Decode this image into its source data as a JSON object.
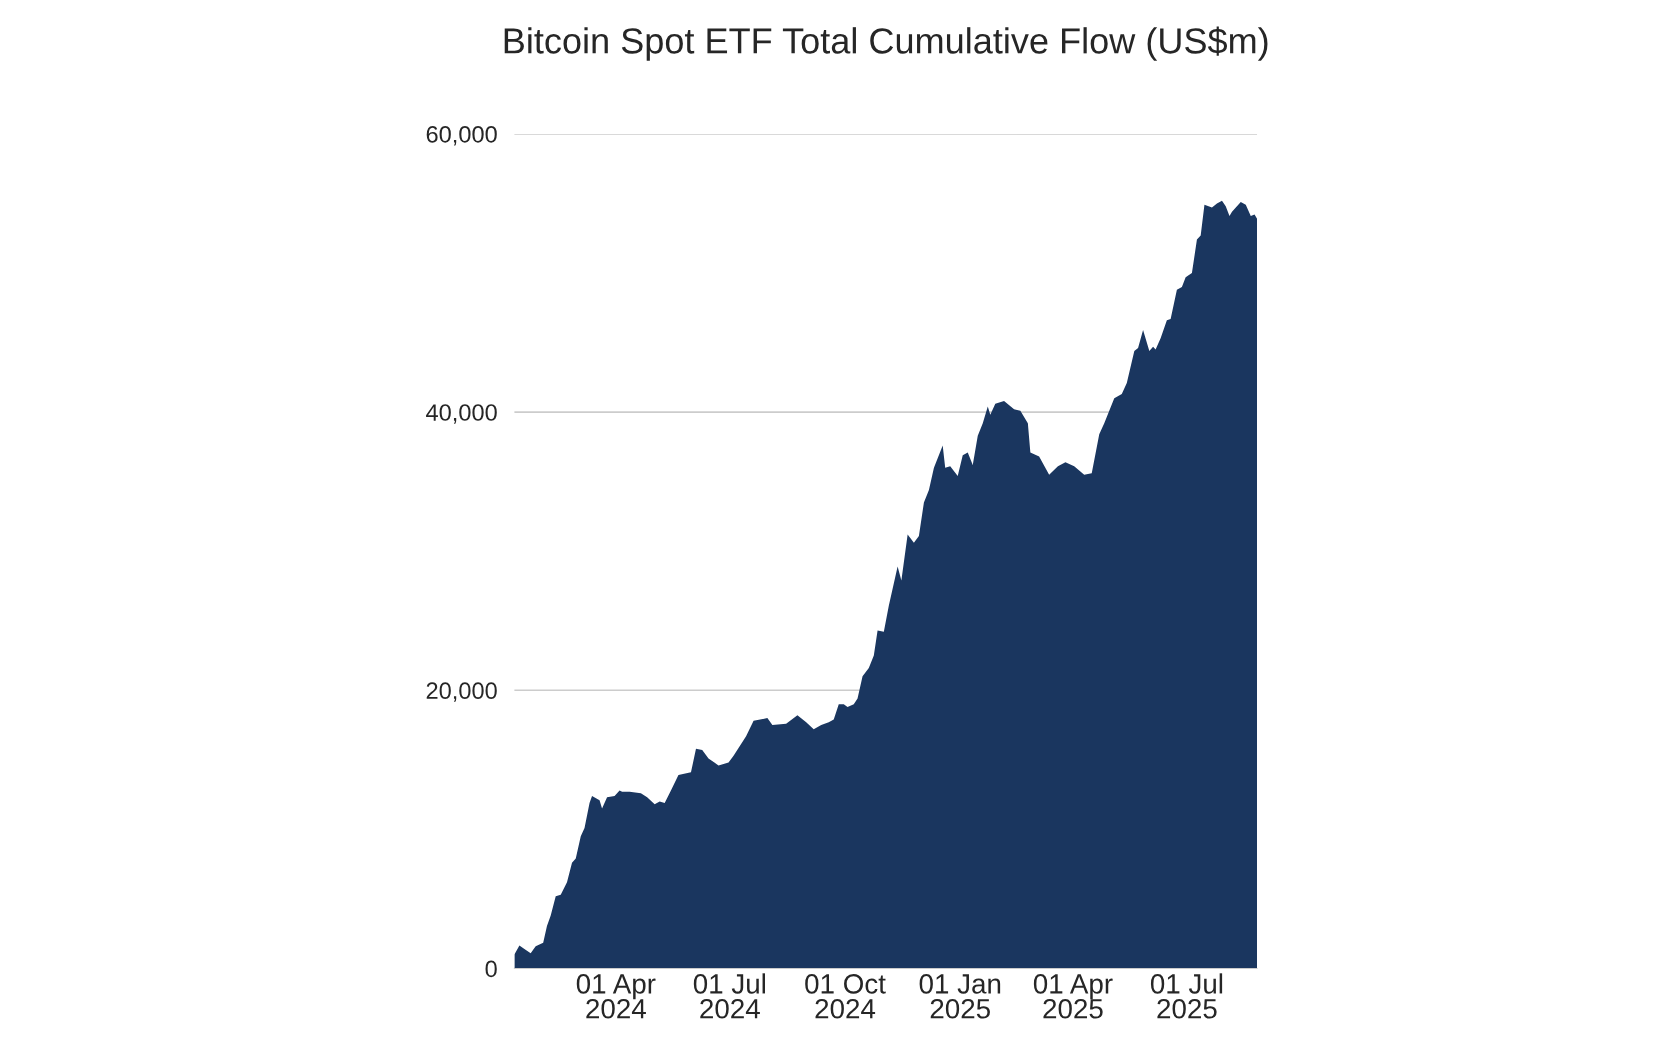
{
  "chart_data": {
    "type": "area",
    "title": "Bitcoin Spot ETF Total Cumulative Flow (US$m)",
    "x": [
      "2024-01-11",
      "2024-01-15",
      "2024-01-19",
      "2024-01-24",
      "2024-01-28",
      "2024-02-03",
      "2024-02-06",
      "2024-02-09",
      "2024-02-13",
      "2024-02-17",
      "2024-02-22",
      "2024-02-26",
      "2024-02-29",
      "2024-03-04",
      "2024-03-07",
      "2024-03-11",
      "2024-03-13",
      "2024-03-19",
      "2024-03-21",
      "2024-03-25",
      "2024-03-31",
      "2024-04-04",
      "2024-04-06",
      "2024-04-12",
      "2024-04-21",
      "2024-04-26",
      "2024-05-02",
      "2024-05-06",
      "2024-05-10",
      "2024-05-15",
      "2024-05-21",
      "2024-05-31",
      "2024-06-04",
      "2024-06-09",
      "2024-06-14",
      "2024-06-22",
      "2024-06-30",
      "2024-07-04",
      "2024-07-14",
      "2024-07-20",
      "2024-07-31",
      "2024-08-04",
      "2024-08-15",
      "2024-08-24",
      "2024-08-31",
      "2024-09-06",
      "2024-09-12",
      "2024-09-18",
      "2024-09-22",
      "2024-09-26",
      "2024-09-30",
      "2024-10-03",
      "2024-10-08",
      "2024-10-11",
      "2024-10-15",
      "2024-10-20",
      "2024-10-24",
      "2024-10-27",
      "2024-11-01",
      "2024-11-05",
      "2024-11-12",
      "2024-11-15",
      "2024-11-20",
      "2024-11-25",
      "2024-11-29",
      "2024-12-03",
      "2024-12-07",
      "2024-12-11",
      "2024-12-18",
      "2024-12-20",
      "2024-12-24",
      "2024-12-30",
      "2025-01-03",
      "2025-01-07",
      "2025-01-11",
      "2025-01-15",
      "2025-01-19",
      "2025-01-23",
      "2025-01-25",
      "2025-01-29",
      "2025-02-05",
      "2025-02-13",
      "2025-02-18",
      "2025-02-24",
      "2025-02-26",
      "2025-03-05",
      "2025-03-13",
      "2025-03-20",
      "2025-03-26",
      "2025-04-02",
      "2025-04-10",
      "2025-04-16",
      "2025-04-22",
      "2025-04-26",
      "2025-04-30",
      "2025-05-04",
      "2025-05-10",
      "2025-05-14",
      "2025-05-20",
      "2025-05-23",
      "2025-05-27",
      "2025-06-01",
      "2025-06-04",
      "2025-06-06",
      "2025-06-10",
      "2025-06-15",
      "2025-06-18",
      "2025-06-23",
      "2025-06-27",
      "2025-06-30",
      "2025-07-05",
      "2025-07-09",
      "2025-07-12",
      "2025-07-15",
      "2025-07-21",
      "2025-07-25",
      "2025-07-29",
      "2025-08-01",
      "2025-08-04",
      "2025-08-06",
      "2025-08-13",
      "2025-08-17",
      "2025-08-21",
      "2025-08-24",
      "2025-08-26"
    ],
    "series": [
      {
        "color": "#1a365f",
        "values": [
          1000,
          1650,
          1400,
          1100,
          1600,
          1850,
          3050,
          3800,
          5200,
          5300,
          6200,
          7600,
          7900,
          9500,
          10100,
          11900,
          12400,
          12100,
          11500,
          12300,
          12400,
          12800,
          12700,
          12700,
          12600,
          12300,
          11800,
          12000,
          11900,
          12800,
          13900,
          14100,
          15800,
          15700,
          15100,
          14600,
          14800,
          15300,
          16700,
          17800,
          18000,
          17500,
          17600,
          18200,
          17700,
          17200,
          17500,
          17700,
          17900,
          19000,
          19000,
          18800,
          19000,
          19400,
          21000,
          21600,
          22500,
          24300,
          24200,
          26100,
          28900,
          27900,
          31200,
          30600,
          31100,
          33500,
          34400,
          36000,
          37600,
          36000,
          36100,
          35400,
          36900,
          37100,
          36200,
          38300,
          39200,
          40400,
          39800,
          40600,
          40800,
          40200,
          40100,
          39200,
          37100,
          36800,
          35500,
          36100,
          36400,
          36100,
          35500,
          35600,
          38400,
          39200,
          40100,
          41000,
          41300,
          42100,
          44400,
          44600,
          45900,
          44400,
          44700,
          44500,
          45300,
          46600,
          46700,
          48800,
          49000,
          49700,
          50000,
          52400,
          52700,
          54900,
          54700,
          55000,
          55200,
          54800,
          54100,
          54400,
          55100,
          54900,
          54100,
          54200,
          53900
        ]
      }
    ],
    "xlim": [
      "2024-01-11",
      "2025-08-26"
    ],
    "xticks": [
      {
        "value": "2024-04-01",
        "label": "01 Apr\n2024"
      },
      {
        "value": "2024-07-01",
        "label": "01 Jul\n2024"
      },
      {
        "value": "2024-10-01",
        "label": "01 Oct\n2024"
      },
      {
        "value": "2025-01-01",
        "label": "01 Jan\n2025"
      },
      {
        "value": "2025-04-01",
        "label": "01 Apr\n2025"
      },
      {
        "value": "2025-07-01",
        "label": "01 Jul\n2025"
      }
    ],
    "ylim": [
      0,
      60000
    ],
    "yticks": [
      0,
      {
        "value": 20000,
        "label": "20,000"
      },
      {
        "value": 40000,
        "label": "40,000"
      },
      {
        "value": 60000,
        "label": "60,000"
      }
    ],
    "grid": "y"
  }
}
